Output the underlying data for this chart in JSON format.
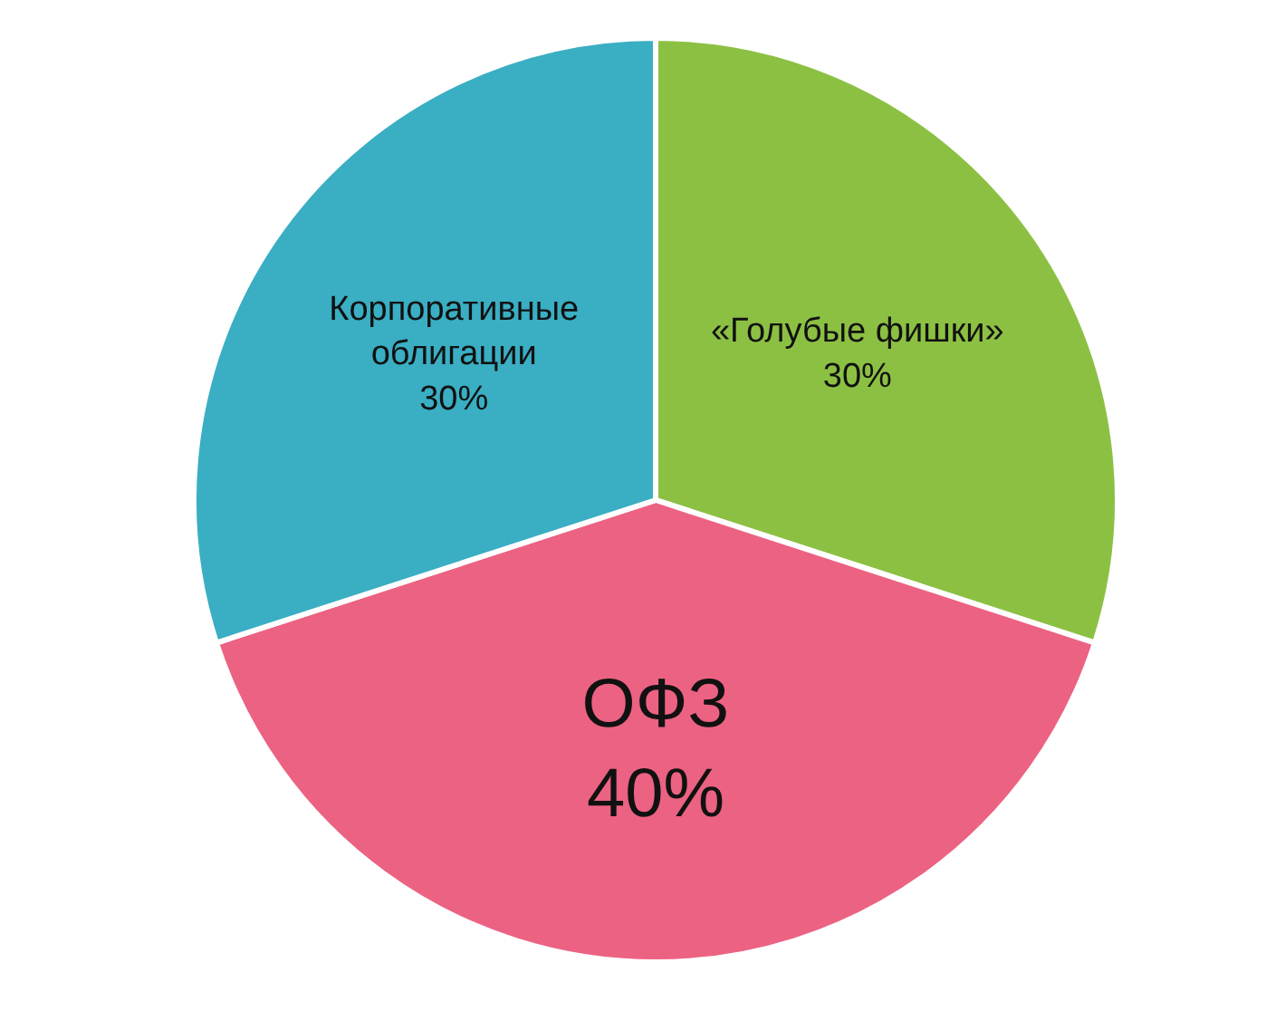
{
  "chart_data": {
    "type": "pie",
    "categories": [
      "«Голубые фишки»",
      "ОФЗ",
      "Корпоративные облигации"
    ],
    "values": [
      30,
      40,
      30
    ],
    "value_labels": [
      "30%",
      "40%",
      "30%"
    ],
    "colors": [
      "#8cc043",
      "#ec6282",
      "#3aaec3"
    ],
    "legend": false
  }
}
